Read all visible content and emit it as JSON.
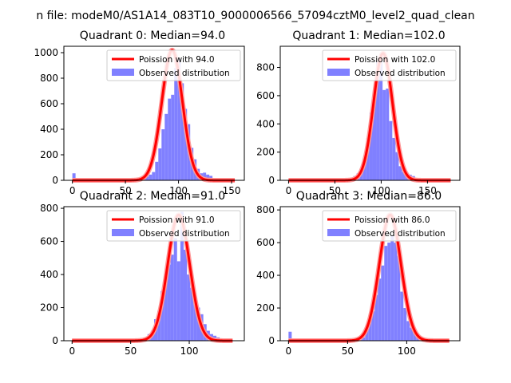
{
  "suptitle": "n file: modeM0/AS1A14_083T10_9000006566_57094cztM0_level2_quad_clean",
  "colors": {
    "hist": "#8080ff",
    "fit": "#ff0000",
    "fit_light": "#ff9999",
    "axis": "#000000"
  },
  "chart_data": [
    {
      "type": "bar",
      "title": "Quadrant 0: Median=94.0",
      "median": 94,
      "xlim": [
        -8,
        162
      ],
      "ylim": [
        0,
        1050
      ],
      "xticks": [
        0,
        50,
        100,
        150
      ],
      "yticks": [
        0,
        200,
        400,
        600,
        800,
        1000
      ],
      "bin_width": 3,
      "bins": [
        [
          0,
          55
        ],
        [
          3,
          3
        ],
        [
          6,
          3
        ],
        [
          9,
          3
        ],
        [
          12,
          3
        ],
        [
          15,
          3
        ],
        [
          18,
          3
        ],
        [
          21,
          3
        ],
        [
          24,
          3
        ],
        [
          27,
          3
        ],
        [
          30,
          3
        ],
        [
          33,
          3
        ],
        [
          36,
          3
        ],
        [
          39,
          3
        ],
        [
          42,
          3
        ],
        [
          45,
          3
        ],
        [
          48,
          3
        ],
        [
          51,
          3
        ],
        [
          54,
          3
        ],
        [
          57,
          3
        ],
        [
          60,
          3
        ],
        [
          63,
          5
        ],
        [
          66,
          10
        ],
        [
          69,
          30
        ],
        [
          72,
          45
        ],
        [
          75,
          65
        ],
        [
          78,
          145
        ],
        [
          81,
          250
        ],
        [
          84,
          400
        ],
        [
          87,
          520
        ],
        [
          90,
          640
        ],
        [
          93,
          670
        ],
        [
          96,
          880
        ],
        [
          99,
          950
        ],
        [
          102,
          760
        ],
        [
          105,
          560
        ],
        [
          108,
          440
        ],
        [
          111,
          255
        ],
        [
          114,
          165
        ],
        [
          117,
          90
        ],
        [
          120,
          55
        ],
        [
          123,
          60
        ],
        [
          126,
          45
        ],
        [
          129,
          35
        ],
        [
          132,
          12
        ],
        [
          135,
          6
        ],
        [
          138,
          4
        ],
        [
          141,
          3
        ],
        [
          144,
          3
        ],
        [
          147,
          3
        ],
        [
          150,
          3
        ]
      ],
      "fit_peak": 1020,
      "fit_sigma": 9.7,
      "fit_range": [
        0,
        153
      ],
      "legend": {
        "fit": "Poission with 94.0",
        "observed": "Observed distribution"
      }
    },
    {
      "type": "bar",
      "title": "Quadrant 1: Median=102.0",
      "median": 102,
      "xlim": [
        -9,
        185
      ],
      "ylim": [
        0,
        950
      ],
      "xticks": [
        0,
        50,
        100,
        150
      ],
      "yticks": [
        0,
        200,
        400,
        600,
        800
      ],
      "bin_width": 3.5,
      "bins": [
        [
          0,
          3
        ],
        [
          3.5,
          3
        ],
        [
          7,
          3
        ],
        [
          10.5,
          3
        ],
        [
          14,
          3
        ],
        [
          17.5,
          3
        ],
        [
          21,
          3
        ],
        [
          24.5,
          3
        ],
        [
          28,
          3
        ],
        [
          31.5,
          3
        ],
        [
          35,
          3
        ],
        [
          38.5,
          3
        ],
        [
          42,
          3
        ],
        [
          45.5,
          3
        ],
        [
          49,
          3
        ],
        [
          52.5,
          3
        ],
        [
          56,
          3
        ],
        [
          59.5,
          3
        ],
        [
          63,
          3
        ],
        [
          66.5,
          3
        ],
        [
          70,
          30
        ],
        [
          73.5,
          50
        ],
        [
          77,
          70
        ],
        [
          80.5,
          120
        ],
        [
          84,
          300
        ],
        [
          87.5,
          480
        ],
        [
          91,
          580
        ],
        [
          94.5,
          840
        ],
        [
          98,
          860
        ],
        [
          101.5,
          640
        ],
        [
          105,
          650
        ],
        [
          108.5,
          420
        ],
        [
          112,
          300
        ],
        [
          115.5,
          200
        ],
        [
          119,
          100
        ],
        [
          122.5,
          60
        ],
        [
          126,
          50
        ],
        [
          129.5,
          40
        ],
        [
          133,
          30
        ],
        [
          136.5,
          10
        ],
        [
          140,
          5
        ],
        [
          143.5,
          3
        ],
        [
          147,
          3
        ],
        [
          150.5,
          3
        ],
        [
          154,
          3
        ],
        [
          157.5,
          3
        ],
        [
          161,
          3
        ],
        [
          164.5,
          3
        ],
        [
          168,
          3
        ],
        [
          171.5,
          3
        ]
      ],
      "fit_peak": 900,
      "fit_sigma": 10.3,
      "fit_range": [
        0,
        175
      ],
      "legend": {
        "fit": "Poission with 102.0",
        "observed": "Observed distribution"
      }
    },
    {
      "type": "bar",
      "title": "Quadrant 2: Median=91.0",
      "median": 91,
      "xlim": [
        -7,
        147
      ],
      "ylim": [
        0,
        810
      ],
      "xticks": [
        0,
        50,
        100
      ],
      "yticks": [
        0,
        200,
        400,
        600,
        800
      ],
      "bin_width": 2.8,
      "bins": [
        [
          0,
          3
        ],
        [
          2.8,
          3
        ],
        [
          5.6,
          3
        ],
        [
          8.4,
          3
        ],
        [
          11.2,
          3
        ],
        [
          14,
          3
        ],
        [
          16.8,
          3
        ],
        [
          19.6,
          3
        ],
        [
          22.4,
          3
        ],
        [
          25.2,
          3
        ],
        [
          28,
          3
        ],
        [
          30.8,
          3
        ],
        [
          33.6,
          3
        ],
        [
          36.4,
          3
        ],
        [
          39.2,
          3
        ],
        [
          42,
          3
        ],
        [
          44.8,
          3
        ],
        [
          47.6,
          3
        ],
        [
          50.4,
          3
        ],
        [
          53.2,
          3
        ],
        [
          56,
          3
        ],
        [
          58.8,
          10
        ],
        [
          61.6,
          20
        ],
        [
          64.4,
          40
        ],
        [
          67.2,
          60
        ],
        [
          70,
          130
        ],
        [
          72.8,
          180
        ],
        [
          75.6,
          300
        ],
        [
          78.4,
          360
        ],
        [
          81.2,
          460
        ],
        [
          84,
          520
        ],
        [
          86.8,
          620
        ],
        [
          89.6,
          480
        ],
        [
          92.4,
          780
        ],
        [
          95.2,
          550
        ],
        [
          98,
          400
        ],
        [
          100.8,
          320
        ],
        [
          103.6,
          240
        ],
        [
          106.4,
          200
        ],
        [
          109.2,
          160
        ],
        [
          112,
          100
        ],
        [
          114.8,
          60
        ],
        [
          117.6,
          40
        ],
        [
          120.4,
          30
        ],
        [
          123.2,
          20
        ],
        [
          126,
          10
        ],
        [
          128.8,
          4
        ],
        [
          131.6,
          3
        ],
        [
          134.4,
          3
        ]
      ],
      "fit_peak": 760,
      "fit_sigma": 9.4,
      "fit_range": [
        0,
        137
      ],
      "legend": {
        "fit": "Poission with 91.0",
        "observed": "Observed distribution"
      }
    },
    {
      "type": "bar",
      "title": "Quadrant 3: Median=86.0",
      "median": 86,
      "xlim": [
        -7,
        145
      ],
      "ylim": [
        0,
        820
      ],
      "xticks": [
        0,
        50,
        100
      ],
      "yticks": [
        0,
        200,
        400,
        600,
        800
      ],
      "bin_width": 2.7,
      "bins": [
        [
          0,
          55
        ],
        [
          2.7,
          3
        ],
        [
          5.4,
          3
        ],
        [
          8.1,
          3
        ],
        [
          10.8,
          3
        ],
        [
          13.5,
          3
        ],
        [
          16.2,
          3
        ],
        [
          18.9,
          3
        ],
        [
          21.6,
          3
        ],
        [
          24.3,
          3
        ],
        [
          27,
          3
        ],
        [
          29.7,
          3
        ],
        [
          32.4,
          3
        ],
        [
          35.1,
          3
        ],
        [
          37.8,
          3
        ],
        [
          40.5,
          3
        ],
        [
          43.2,
          3
        ],
        [
          45.9,
          3
        ],
        [
          48.6,
          3
        ],
        [
          51.3,
          3
        ],
        [
          54,
          3
        ],
        [
          56.7,
          3
        ],
        [
          59.4,
          10
        ],
        [
          62.1,
          20
        ],
        [
          64.8,
          60
        ],
        [
          67.5,
          120
        ],
        [
          70.2,
          180
        ],
        [
          72.9,
          280
        ],
        [
          75.6,
          380
        ],
        [
          78.3,
          460
        ],
        [
          81,
          580
        ],
        [
          83.7,
          600
        ],
        [
          86.4,
          640
        ],
        [
          89.1,
          600
        ],
        [
          91.8,
          520
        ],
        [
          94.5,
          300
        ],
        [
          97.2,
          200
        ],
        [
          99.9,
          120
        ],
        [
          102.6,
          80
        ],
        [
          105.3,
          60
        ],
        [
          108,
          40
        ],
        [
          110.7,
          20
        ],
        [
          113.4,
          10
        ],
        [
          116.1,
          4
        ],
        [
          118.8,
          3
        ],
        [
          121.5,
          3
        ],
        [
          124.2,
          3
        ],
        [
          126.9,
          3
        ],
        [
          129.6,
          3
        ],
        [
          132.3,
          3
        ]
      ],
      "fit_peak": 770,
      "fit_sigma": 9.2,
      "fit_range": [
        0,
        136
      ],
      "legend": {
        "fit": "Poission with 86.0",
        "observed": "Observed distribution"
      }
    }
  ]
}
